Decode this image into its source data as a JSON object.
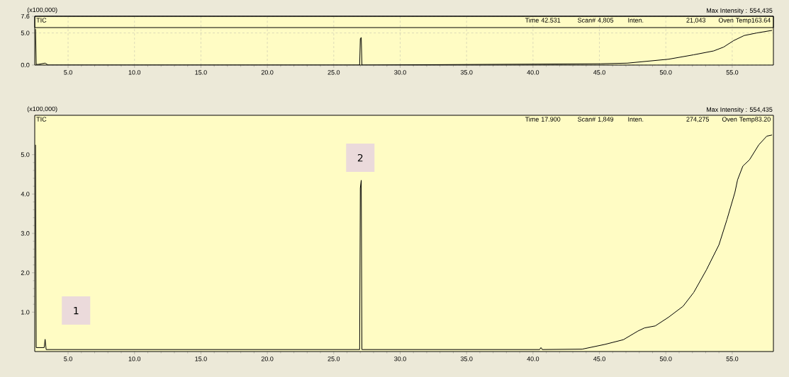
{
  "chart_data": [
    {
      "type": "line",
      "ylabel": "(x100,000)",
      "grid": true,
      "annotations": [
        "Max Intensity : 554,435",
        "TIC",
        "Time  42.531",
        "Scan#  4,805",
        "Inten.",
        "21,043",
        "Oven Temp163.64"
      ],
      "xlim": [
        2.49,
        58.1
      ],
      "ylim": [
        0,
        7.6
      ],
      "xticks": [
        {
          "value": 5,
          "label": "5.0"
        },
        {
          "value": 10,
          "label": "10.0"
        },
        {
          "value": 15,
          "label": "15.0"
        },
        {
          "value": 20,
          "label": "20.0"
        },
        {
          "value": 25,
          "label": "25.0"
        },
        {
          "value": 30,
          "label": "30.0"
        },
        {
          "value": 35,
          "label": "35.0"
        },
        {
          "value": 40,
          "label": "40.0"
        },
        {
          "value": 45,
          "label": "45.0"
        },
        {
          "value": 50,
          "label": "50.0"
        },
        {
          "value": 55,
          "label": "55.0"
        }
      ],
      "yticks": [
        {
          "value": 0,
          "label": "0.0"
        },
        {
          "value": 5,
          "label": "5.0"
        },
        {
          "value": 7.6,
          "label": "7.6"
        }
      ],
      "series": [
        {
          "color": "#000000",
          "x": [
            2.55,
            2.6,
            2.74,
            3.27,
            3.5,
            26.95,
            27.0,
            27.07,
            27.12,
            45.1,
            47.1,
            50.2,
            52.1,
            53.6,
            54.35,
            55.1,
            55.9,
            56.85,
            58.0
          ],
          "values": [
            5.6,
            0.1,
            0.1,
            0.3,
            0,
            0,
            4.1,
            4.3,
            0,
            0.2,
            0.3,
            0.91,
            1.6,
            2.2,
            2.8,
            3.8,
            4.6,
            5.0,
            5.4
          ]
        }
      ]
    },
    {
      "type": "line",
      "ylabel": "(x100,000)",
      "annotations": [
        "Max Intensity : 554,435",
        "TIC",
        "Time  17.900",
        "Scan#  1,849",
        "Inten.",
        "274,275",
        "Oven Temp83.20",
        {
          "text": "1",
          "x": 5.6,
          "y": 1.04
        },
        {
          "text": "2",
          "x": 27.0,
          "y": 4.92
        }
      ],
      "xlim": [
        2.49,
        58.1
      ],
      "ylim": [
        0,
        6.0
      ],
      "xticks": [
        {
          "value": 5,
          "label": "5.0"
        },
        {
          "value": 10,
          "label": "10.0"
        },
        {
          "value": 15,
          "label": "15.0"
        },
        {
          "value": 20,
          "label": "20.0"
        },
        {
          "value": 25,
          "label": "25.0"
        },
        {
          "value": 30,
          "label": "30.0"
        },
        {
          "value": 35,
          "label": "35.0"
        },
        {
          "value": 40,
          "label": "40.0"
        },
        {
          "value": 45,
          "label": "45.0"
        },
        {
          "value": 50,
          "label": "50.0"
        },
        {
          "value": 55,
          "label": "55.0"
        }
      ],
      "yticks": [
        {
          "value": 1,
          "label": "1.0"
        },
        {
          "value": 2,
          "label": "2.0"
        },
        {
          "value": 3,
          "label": "3.0"
        },
        {
          "value": 4,
          "label": "4.0"
        },
        {
          "value": 5,
          "label": "5.0"
        }
      ],
      "series": [
        {
          "color": "#000000",
          "x": [
            2.55,
            2.6,
            2.74,
            3.2,
            3.27,
            3.35,
            3.5,
            7.0,
            9.0,
            26.95,
            27.0,
            27.07,
            27.12,
            40.5,
            40.6,
            40.7,
            43.7,
            45.4,
            46.8,
            47.9,
            48.4,
            49.2,
            50.2,
            51.3,
            52.1,
            53.05,
            54.0,
            54.6,
            55.2,
            55.4,
            55.8,
            56.3,
            57.0,
            57.6,
            58.0
          ],
          "values": [
            5.25,
            0.1,
            0.1,
            0.1,
            0.31,
            0.05,
            0.05,
            0.05,
            0.05,
            0.05,
            4.15,
            4.35,
            0.05,
            0.05,
            0.1,
            0.05,
            0.06,
            0.18,
            0.3,
            0.52,
            0.6,
            0.65,
            0.87,
            1.15,
            1.5,
            2.07,
            2.71,
            3.35,
            4.04,
            4.36,
            4.71,
            4.87,
            5.25,
            5.47,
            5.5
          ]
        }
      ]
    }
  ]
}
